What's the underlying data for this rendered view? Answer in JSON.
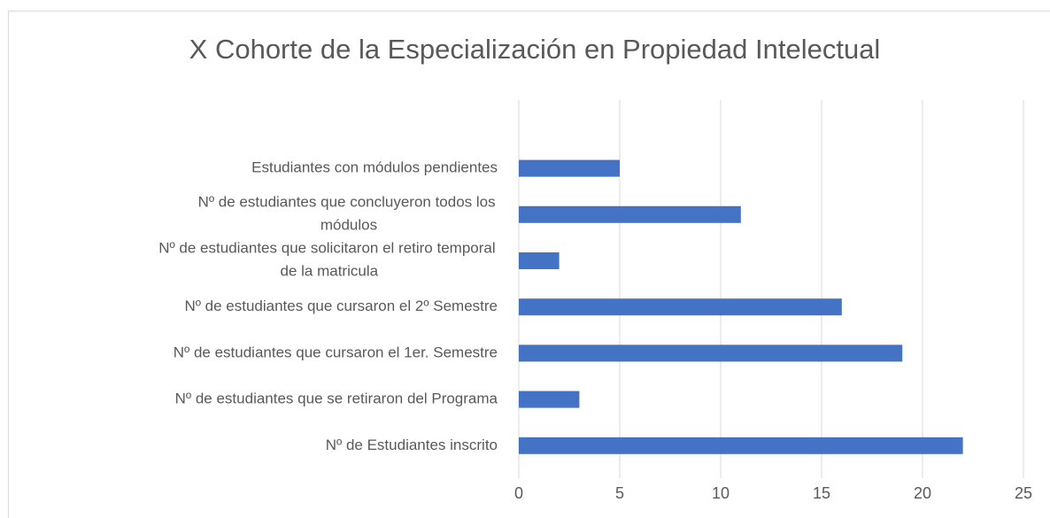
{
  "chart_data": {
    "type": "bar",
    "orientation": "horizontal",
    "title": "X Cohorte de la Especialización en Propiedad Intelectual",
    "categories": [
      "Estudiantes con módulos pendientes",
      "Nº de estudiantes que concluyeron todos los módulos",
      "Nº de estudiantes que solicitaron el retiro temporal de la matricula",
      "Nº de estudiantes que cursaron el 2º Semestre",
      "Nº de estudiantes que cursaron el 1er. Semestre",
      "Nº de estudiantes que se retiraron del Programa",
      "Nº de Estudiantes inscrito"
    ],
    "values": [
      5,
      11,
      2,
      16,
      19,
      3,
      22
    ],
    "color": "#4472c4",
    "xlim": [
      0,
      25
    ],
    "xticks": [
      0,
      5,
      10,
      15,
      20,
      25
    ],
    "grid": true
  }
}
